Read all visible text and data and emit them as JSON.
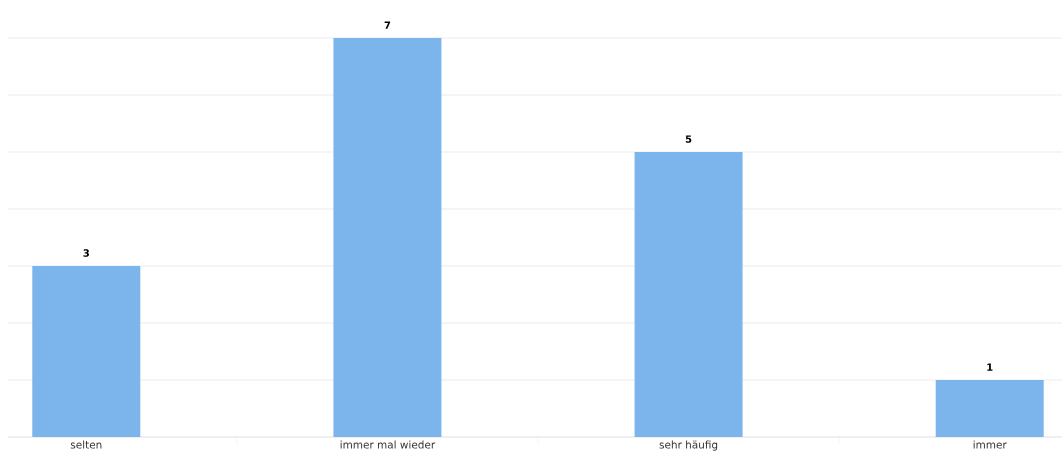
{
  "chart_data": {
    "type": "bar",
    "categories": [
      "selten",
      "immer mal wieder",
      "sehr häufig",
      "immer"
    ],
    "values": [
      3,
      7,
      5,
      1
    ],
    "color": "#7cb5ec",
    "data_labels": true,
    "grid": "y",
    "tick_labels": "x",
    "ylim": [
      0,
      7
    ]
  }
}
